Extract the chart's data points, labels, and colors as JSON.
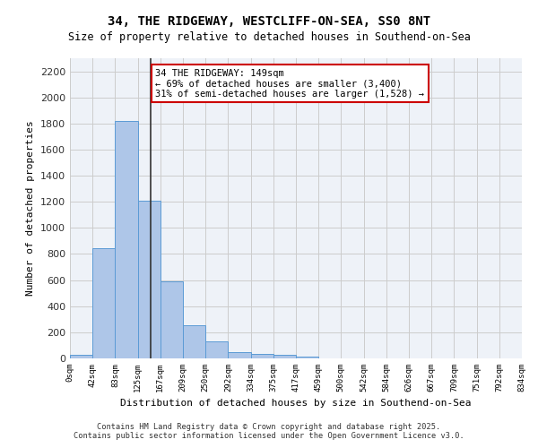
{
  "title_line1": "34, THE RIDGEWAY, WESTCLIFF-ON-SEA, SS0 8NT",
  "title_line2": "Size of property relative to detached houses in Southend-on-Sea",
  "xlabel": "Distribution of detached houses by size in Southend-on-Sea",
  "ylabel": "Number of detached properties",
  "bin_labels": [
    "0sqm",
    "42sqm",
    "83sqm",
    "125sqm",
    "167sqm",
    "209sqm",
    "250sqm",
    "292sqm",
    "334sqm",
    "375sqm",
    "417sqm",
    "459sqm",
    "500sqm",
    "542sqm",
    "584sqm",
    "626sqm",
    "667sqm",
    "709sqm",
    "751sqm",
    "792sqm",
    "834sqm"
  ],
  "bar_values": [
    25,
    845,
    1820,
    1210,
    590,
    255,
    130,
    45,
    35,
    25,
    15,
    0,
    0,
    0,
    0,
    0,
    0,
    0,
    0,
    0
  ],
  "bar_color": "#aec6e8",
  "bar_edge_color": "#5b9bd5",
  "background_color": "#eef2f8",
  "annotation_text": "34 THE RIDGEWAY: 149sqm\n← 69% of detached houses are smaller (3,400)\n31% of semi-detached houses are larger (1,528) →",
  "vline_x": 149,
  "vline_color": "#333333",
  "annotation_box_color": "#ffffff",
  "annotation_box_edge": "#cc0000",
  "ylim_max": 2300,
  "yticks": [
    0,
    200,
    400,
    600,
    800,
    1000,
    1200,
    1400,
    1600,
    1800,
    2000,
    2200
  ],
  "footer_line1": "Contains HM Land Registry data © Crown copyright and database right 2025.",
  "footer_line2": "Contains public sector information licensed under the Open Government Licence v3.0.",
  "bin_width": 41.5
}
